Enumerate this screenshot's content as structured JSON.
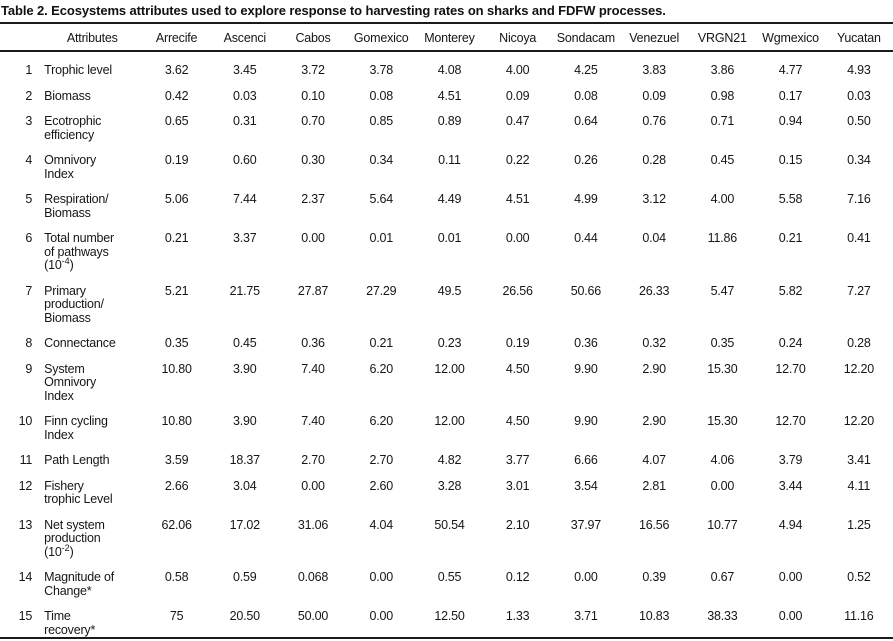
{
  "title": "Table 2. Ecosystems attributes used to explore response to harvesting rates on sharks and FDFW processes.",
  "table": {
    "header": [
      "Attributes",
      "Arrecife",
      "Ascenci",
      "Cabos",
      "Gomexico",
      "Monterey",
      "Nicoya",
      "Sondacam",
      "Venezuel",
      "VRGN21",
      "Wgmexico",
      "Yucatan"
    ],
    "rows": [
      {
        "num": "1",
        "attribute": [
          "Trophic level"
        ],
        "values": [
          "3.62",
          "3.45",
          "3.72",
          "3.78",
          "4.08",
          "4.00",
          "4.25",
          "3.83",
          "3.86",
          "4.77",
          "4.93"
        ]
      },
      {
        "num": "2",
        "attribute": [
          "Biomass"
        ],
        "values": [
          "0.42",
          "0.03",
          "0.10",
          "0.08",
          "4.51",
          "0.09",
          "0.08",
          "0.09",
          "0.98",
          "0.17",
          "0.03"
        ]
      },
      {
        "num": "3",
        "attribute": [
          "Ecotrophic",
          "efficiency"
        ],
        "values": [
          "0.65",
          "0.31",
          "0.70",
          "0.85",
          "0.89",
          "0.47",
          "0.64",
          "0.76",
          "0.71",
          "0.94",
          "0.50"
        ]
      },
      {
        "num": "4",
        "attribute": [
          "Omnivory",
          "Index"
        ],
        "values": [
          "0.19",
          "0.60",
          "0.30",
          "0.34",
          "0.11",
          "0.22",
          "0.26",
          "0.28",
          "0.45",
          "0.15",
          "0.34"
        ]
      },
      {
        "num": "5",
        "attribute": [
          "Respiration/",
          "Biomass"
        ],
        "values": [
          "5.06",
          "7.44",
          "2.37",
          "5.64",
          "4.49",
          "4.51",
          "4.99",
          "3.12",
          "4.00",
          "5.58",
          "7.16"
        ]
      },
      {
        "num": "6",
        "attribute": [
          "Total number",
          "of pathways",
          [
            "(10",
            "-4",
            ")"
          ]
        ],
        "values": [
          "0.21",
          "3.37",
          "0.00",
          "0.01",
          "0.01",
          "0.00",
          "0.44",
          "0.04",
          "11.86",
          "0.21",
          "0.41"
        ]
      },
      {
        "num": "7",
        "attribute": [
          "Primary",
          "production/",
          "Biomass"
        ],
        "values": [
          "5.21",
          "21.75",
          "27.87",
          "27.29",
          "49.5",
          "26.56",
          "50.66",
          "26.33",
          "5.47",
          "5.82",
          "7.27"
        ]
      },
      {
        "num": "8",
        "attribute": [
          "Connectance"
        ],
        "values": [
          "0.35",
          "0.45",
          "0.36",
          "0.21",
          "0.23",
          "0.19",
          "0.36",
          "0.32",
          "0.35",
          "0.24",
          "0.28"
        ]
      },
      {
        "num": "9",
        "attribute": [
          "System",
          "Omnivory",
          "Index"
        ],
        "values": [
          "10.80",
          "3.90",
          "7.40",
          "6.20",
          "12.00",
          "4.50",
          "9.90",
          "2.90",
          "15.30",
          "12.70",
          "12.20"
        ]
      },
      {
        "num": "10",
        "attribute": [
          "Finn cycling",
          "Index"
        ],
        "values": [
          "10.80",
          "3.90",
          "7.40",
          "6.20",
          "12.00",
          "4.50",
          "9.90",
          "2.90",
          "15.30",
          "12.70",
          "12.20"
        ]
      },
      {
        "num": "11",
        "attribute": [
          "Path Length"
        ],
        "values": [
          "3.59",
          "18.37",
          "2.70",
          "2.70",
          "4.82",
          "3.77",
          "6.66",
          "4.07",
          "4.06",
          "3.79",
          "3.41"
        ]
      },
      {
        "num": "12",
        "attribute": [
          "Fishery",
          "trophic Level"
        ],
        "values": [
          "2.66",
          "3.04",
          "0.00",
          "2.60",
          "3.28",
          "3.01",
          "3.54",
          "2.81",
          "0.00",
          "3.44",
          "4.11"
        ]
      },
      {
        "num": "13",
        "attribute": [
          "Net system",
          "production",
          [
            "(10",
            "-2",
            ")"
          ]
        ],
        "values": [
          "62.06",
          "17.02",
          "31.06",
          "4.04",
          "50.54",
          "2.10",
          "37.97",
          "16.56",
          "10.77",
          "4.94",
          "1.25"
        ]
      },
      {
        "num": "14",
        "attribute": [
          "Magnitude of",
          "Change*"
        ],
        "values": [
          "0.58",
          "0.59",
          "0.068",
          "0.00",
          "0.55",
          "0.12",
          "0.00",
          "0.39",
          "0.67",
          "0.00",
          "0.52"
        ]
      },
      {
        "num": "15",
        "attribute": [
          "Time",
          "recovery*"
        ],
        "values": [
          "75",
          "20.50",
          "50.00",
          "0.00",
          "12.50",
          "1.33",
          "3.71",
          "10.83",
          "38.33",
          "0.00",
          "11.16"
        ]
      }
    ]
  }
}
